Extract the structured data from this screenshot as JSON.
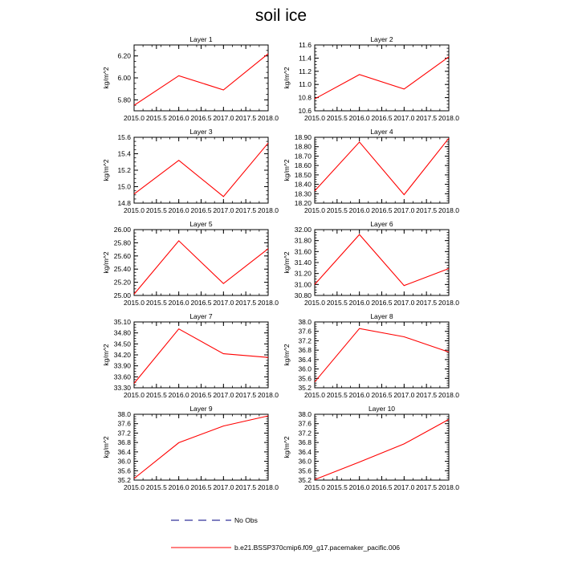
{
  "title": "soil ice",
  "colors": {
    "line": "#ff0000",
    "obs": "#000080",
    "axis": "#000000"
  },
  "legend": {
    "obs_label": "No Obs",
    "model_label": "b.e21.BSSP370cmip6.f09_g17.pacemaker_pacific.006"
  },
  "chart_data": [
    {
      "type": "line",
      "title": "Layer 1",
      "ylabel": "kg/m^2",
      "xlim": [
        2015.0,
        2018.0
      ],
      "ylim": [
        5.7,
        6.3
      ],
      "yticks": [
        "5.80",
        "6.00",
        "6.20"
      ],
      "ytick_values": [
        5.8,
        6.0,
        6.2
      ],
      "xticks": [
        "2015.0",
        "2015.5",
        "2016.0",
        "2016.5",
        "2017.0",
        "2017.5",
        "2018.0"
      ],
      "x": [
        2015.0,
        2016.0,
        2017.0,
        2018.0
      ],
      "values": [
        5.75,
        6.02,
        5.89,
        6.22
      ]
    },
    {
      "type": "line",
      "title": "Layer 2",
      "ylabel": "kg/m^2",
      "xlim": [
        2015.0,
        2018.0
      ],
      "ylim": [
        10.6,
        11.6
      ],
      "yticks": [
        "10.6",
        "10.8",
        "11.0",
        "11.2",
        "11.4",
        "11.6"
      ],
      "ytick_values": [
        10.6,
        10.8,
        11.0,
        11.2,
        11.4,
        11.6
      ],
      "xticks": [
        "2015.0",
        "2015.5",
        "2016.0",
        "2016.5",
        "2017.0",
        "2017.5",
        "2018.0"
      ],
      "x": [
        2015.0,
        2016.0,
        2017.0,
        2018.0
      ],
      "values": [
        10.78,
        11.15,
        10.93,
        11.42
      ]
    },
    {
      "type": "line",
      "title": "Layer 3",
      "ylabel": "kg/m^2",
      "xlim": [
        2015.0,
        2018.0
      ],
      "ylim": [
        14.8,
        15.6
      ],
      "yticks": [
        "14.8",
        "15.0",
        "15.2",
        "15.4",
        "15.6"
      ],
      "ytick_values": [
        14.8,
        15.0,
        15.2,
        15.4,
        15.6
      ],
      "xticks": [
        "2015.0",
        "2015.5",
        "2016.0",
        "2016.5",
        "2017.0",
        "2017.5",
        "2018.0"
      ],
      "x": [
        2015.0,
        2016.0,
        2017.0,
        2018.0
      ],
      "values": [
        14.91,
        15.32,
        14.88,
        15.53
      ]
    },
    {
      "type": "line",
      "title": "Layer 4",
      "ylabel": "kg/m^2",
      "xlim": [
        2015.0,
        2018.0
      ],
      "ylim": [
        18.2,
        18.9
      ],
      "yticks": [
        "18.20",
        "18.30",
        "18.40",
        "18.50",
        "18.60",
        "18.70",
        "18.80",
        "18.90"
      ],
      "ytick_values": [
        18.2,
        18.3,
        18.4,
        18.5,
        18.6,
        18.7,
        18.8,
        18.9
      ],
      "xticks": [
        "2015.0",
        "2015.5",
        "2016.0",
        "2016.5",
        "2017.0",
        "2017.5",
        "2018.0"
      ],
      "x": [
        2015.0,
        2016.0,
        2017.0,
        2018.0
      ],
      "values": [
        18.33,
        18.85,
        18.29,
        18.89
      ]
    },
    {
      "type": "line",
      "title": "Layer 5",
      "ylabel": "kg/m^2",
      "xlim": [
        2015.0,
        2018.0
      ],
      "ylim": [
        25.0,
        26.0
      ],
      "yticks": [
        "25.00",
        "25.20",
        "25.40",
        "25.60",
        "25.80",
        "26.00"
      ],
      "ytick_values": [
        25.0,
        25.2,
        25.4,
        25.6,
        25.8,
        26.0
      ],
      "xticks": [
        "2015.0",
        "2015.5",
        "2016.0",
        "2016.5",
        "2017.0",
        "2017.5",
        "2018.0"
      ],
      "x": [
        2015.0,
        2016.0,
        2017.0,
        2018.0
      ],
      "values": [
        25.02,
        25.83,
        25.18,
        25.71
      ]
    },
    {
      "type": "line",
      "title": "Layer 6",
      "ylabel": "kg/m^2",
      "xlim": [
        2015.0,
        2018.0
      ],
      "ylim": [
        30.8,
        32.0
      ],
      "yticks": [
        "30.80",
        "31.00",
        "31.20",
        "31.40",
        "31.60",
        "31.80",
        "32.00"
      ],
      "ytick_values": [
        30.8,
        31.0,
        31.2,
        31.4,
        31.6,
        31.8,
        32.0
      ],
      "xticks": [
        "2015.0",
        "2015.5",
        "2016.0",
        "2016.5",
        "2017.0",
        "2017.5",
        "2018.0"
      ],
      "x": [
        2015.0,
        2016.0,
        2017.0,
        2018.0
      ],
      "values": [
        31.0,
        31.91,
        30.98,
        31.29
      ]
    },
    {
      "type": "line",
      "title": "Layer 7",
      "ylabel": "kg/m^2",
      "xlim": [
        2015.0,
        2018.0
      ],
      "ylim": [
        33.3,
        35.1
      ],
      "yticks": [
        "33.30",
        "33.60",
        "33.90",
        "34.20",
        "34.50",
        "34.80",
        "35.10"
      ],
      "ytick_values": [
        33.3,
        33.6,
        33.9,
        34.2,
        34.5,
        34.8,
        35.1
      ],
      "xticks": [
        "2015.0",
        "2015.5",
        "2016.0",
        "2016.5",
        "2017.0",
        "2017.5",
        "2018.0"
      ],
      "x": [
        2015.0,
        2016.0,
        2017.0,
        2018.0
      ],
      "values": [
        33.42,
        34.91,
        34.23,
        34.13
      ]
    },
    {
      "type": "line",
      "title": "Layer 8",
      "ylabel": "kg/m^2",
      "xlim": [
        2015.0,
        2018.0
      ],
      "ylim": [
        35.2,
        38.0
      ],
      "yticks": [
        "35.2",
        "35.6",
        "36.0",
        "36.4",
        "36.8",
        "37.2",
        "37.6",
        "38.0"
      ],
      "ytick_values": [
        35.2,
        35.6,
        36.0,
        36.4,
        36.8,
        37.2,
        37.6,
        38.0
      ],
      "xticks": [
        "2015.0",
        "2015.5",
        "2016.0",
        "2016.5",
        "2017.0",
        "2017.5",
        "2018.0"
      ],
      "x": [
        2015.0,
        2016.0,
        2017.0,
        2018.0
      ],
      "values": [
        35.45,
        37.72,
        37.37,
        36.72
      ]
    },
    {
      "type": "line",
      "title": "Layer 9",
      "ylabel": "kg/m^2",
      "xlim": [
        2015.0,
        2018.0
      ],
      "ylim": [
        35.2,
        38.0
      ],
      "yticks": [
        "35.2",
        "35.6",
        "36.0",
        "36.4",
        "36.8",
        "37.2",
        "37.6",
        "38.0"
      ],
      "ytick_values": [
        35.2,
        35.6,
        36.0,
        36.4,
        36.8,
        37.2,
        37.6,
        38.0
      ],
      "xticks": [
        "2015.0",
        "2015.5",
        "2016.0",
        "2016.5",
        "2017.0",
        "2017.5",
        "2018.0"
      ],
      "x": [
        2015.0,
        2016.0,
        2017.0,
        2018.0
      ],
      "values": [
        35.27,
        36.79,
        37.5,
        37.93
      ]
    },
    {
      "type": "line",
      "title": "Layer 10",
      "ylabel": "kg/m^2",
      "xlim": [
        2015.0,
        2018.0
      ],
      "ylim": [
        35.2,
        38.0
      ],
      "yticks": [
        "35.2",
        "35.6",
        "36.0",
        "36.4",
        "36.8",
        "37.2",
        "37.6",
        "38.0"
      ],
      "ytick_values": [
        35.2,
        35.6,
        36.0,
        36.4,
        36.8,
        37.2,
        37.6,
        38.0
      ],
      "xticks": [
        "2015.0",
        "2015.5",
        "2016.0",
        "2016.5",
        "2017.0",
        "2017.5",
        "2018.0"
      ],
      "x": [
        2015.0,
        2016.0,
        2017.0,
        2018.0
      ],
      "values": [
        35.22,
        35.97,
        36.74,
        37.78
      ]
    }
  ]
}
